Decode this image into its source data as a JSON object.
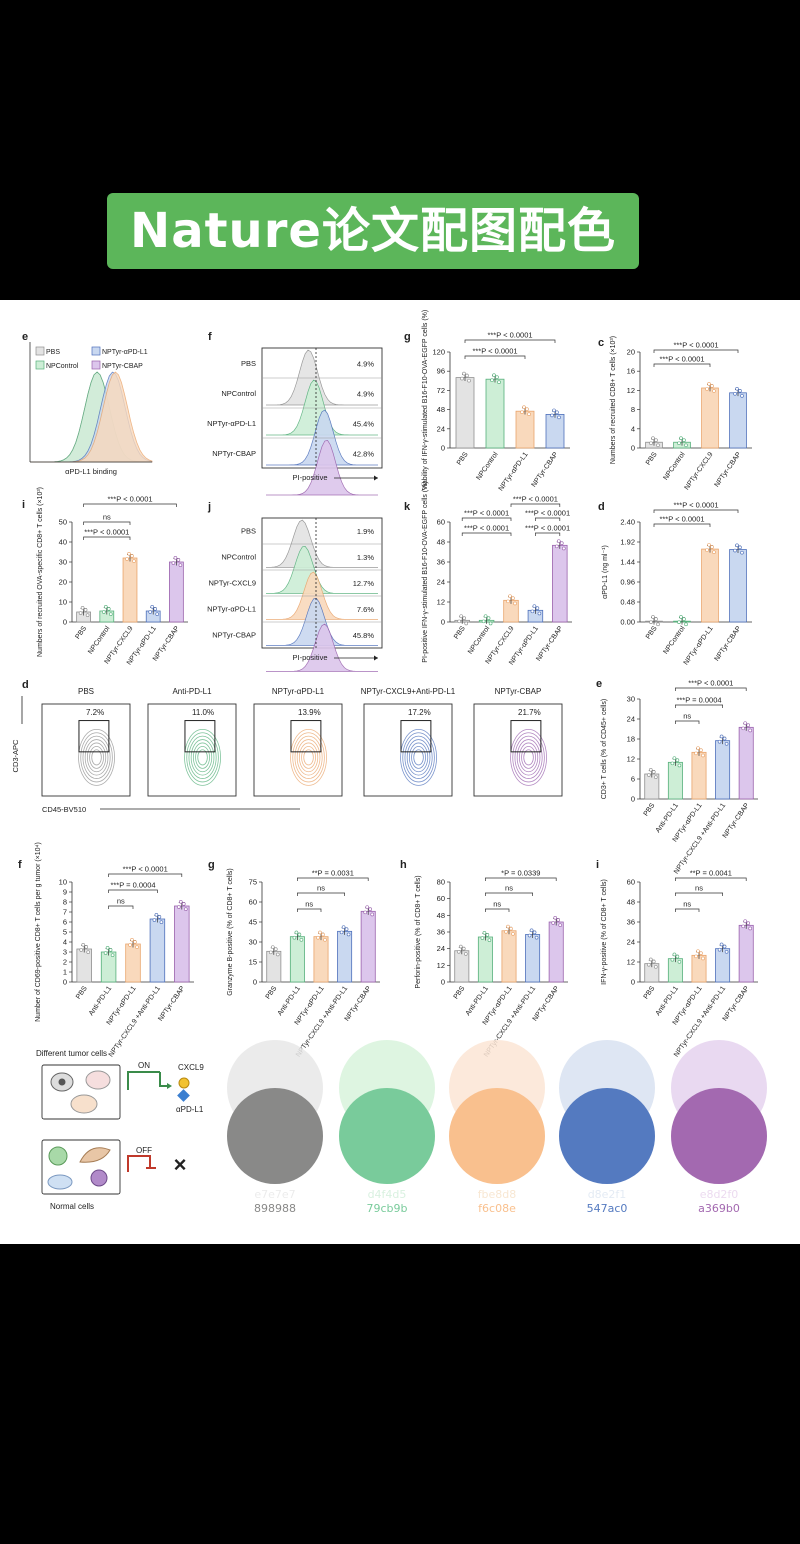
{
  "banner": {
    "title": "Nature论文配图配色"
  },
  "palette": [
    {
      "light": "e7e7e7",
      "dark": "898988",
      "light_color": "#e7e7e7",
      "dark_color": "#898988",
      "ghost_color": "#ececec"
    },
    {
      "light": "d4f4d5",
      "dark": "79cb9b",
      "light_color": "#d8f3dc",
      "dark_color": "#79cb9b",
      "ghost_color": "#d9f1e0"
    },
    {
      "light": "fbe8d8",
      "dark": "f6c08e",
      "light_color": "#fbe5d5",
      "dark_color": "#f9c08e",
      "ghost_color": "#f8e7d2"
    },
    {
      "light": "d8e2f1",
      "dark": "547ac0",
      "light_color": "#d8e2f1",
      "dark_color": "#547ac0",
      "ghost_color": "#e4ebf4"
    },
    {
      "light": "e8d2f0",
      "dark": "a369b0",
      "light_color": "#e5d2ef",
      "dark_color": "#a369b0",
      "ghost_color": "#ecdbf0"
    }
  ],
  "chart_data": [
    {
      "id": "e-hist",
      "type": "area",
      "panel_label": "e",
      "xlabel": "αPD-L1 binding",
      "legend": [
        "PBS",
        "NPControl",
        "NPTyr-αPD-L1",
        "NPTyr-CBAP"
      ]
    },
    {
      "id": "f-flow",
      "type": "area",
      "panel_label": "f",
      "xlabel": "PI-positive",
      "rows": [
        {
          "label": "PBS",
          "value": "4.9%"
        },
        {
          "label": "NPControl",
          "value": "4.9%"
        },
        {
          "label": "NPTyr-αPD-L1",
          "value": "45.4%"
        },
        {
          "label": "NPTyr-CBAP",
          "value": "42.8%"
        }
      ]
    },
    {
      "id": "g-bar",
      "type": "bar",
      "panel_label": "g",
      "ylabel": "Viability of IFN-γ-stimulated B16-F10-OVA-EGFP cells (%)",
      "categories": [
        "PBS",
        "NPControl",
        "NPTyr-αPD-L1",
        "NPTyr-CBAP"
      ],
      "values": [
        88,
        86,
        46,
        42
      ],
      "ylim": [
        0,
        120
      ],
      "yticks": [
        "0",
        "24",
        "48",
        "72",
        "96",
        "120"
      ],
      "annotations": [
        "***P < 0.0001",
        "***P < 0.0001"
      ]
    },
    {
      "id": "c-bar",
      "type": "bar",
      "panel_label": "c",
      "ylabel": "Numbers of recruited CD8+ T cells (×10³)",
      "categories": [
        "PBS",
        "NPControl",
        "NPTyr-CXCL9",
        "NPTyr-CBAP"
      ],
      "values": [
        1.2,
        1.2,
        12.5,
        11.5
      ],
      "ylim": [
        0,
        20
      ],
      "yticks": [
        "0",
        "4",
        "8",
        "12",
        "16",
        "20"
      ],
      "annotations": [
        "***P < 0.0001",
        "***P < 0.0001"
      ]
    },
    {
      "id": "i-bar",
      "type": "bar",
      "panel_label": "i",
      "ylabel": "Numbers of recruited OVA-specific CD8+ T cells (×10³)",
      "categories": [
        "PBS",
        "NPControl",
        "NPTyr-CXCL9",
        "NPTyr-αPD-L1",
        "NPTyr-CBAP"
      ],
      "values": [
        5,
        5.5,
        32,
        5.5,
        30
      ],
      "ylim": [
        0,
        50
      ],
      "yticks": [
        "0",
        "10",
        "20",
        "30",
        "40",
        "50"
      ],
      "annotations": [
        "***P < 0.0001",
        "ns",
        "***P < 0.0001"
      ]
    },
    {
      "id": "j-flow",
      "type": "area",
      "panel_label": "j",
      "xlabel": "PI-positive",
      "rows": [
        {
          "label": "PBS",
          "value": "1.9%"
        },
        {
          "label": "NPControl",
          "value": "1.3%"
        },
        {
          "label": "NPTyr-CXCL9",
          "value": "12.7%"
        },
        {
          "label": "NPTyr-αPD-L1",
          "value": "7.6%"
        },
        {
          "label": "NPTyr-CBAP",
          "value": "45.8%"
        }
      ]
    },
    {
      "id": "k-bar",
      "type": "bar",
      "panel_label": "k",
      "ylabel": "PI-positive IFN-γ-stimulated B16-F10-OVA-EGFP cells (%)",
      "categories": [
        "PBS",
        "NPControl",
        "NPTyr-CXCL9",
        "NPTyr-αPD-L1",
        "NPTyr-CBAP"
      ],
      "values": [
        1,
        1,
        13,
        7,
        46
      ],
      "ylim": [
        0,
        60
      ],
      "yticks": [
        "0",
        "12",
        "24",
        "36",
        "48",
        "60"
      ],
      "annotations": [
        "***P < 0.0001",
        "***P < 0.0001",
        "***P < 0.0001",
        "***P < 0.0001",
        "***P < 0.0001"
      ]
    },
    {
      "id": "d-bar",
      "type": "bar",
      "panel_label": "d",
      "ylabel": "αPD-L1 (ng ml⁻¹)",
      "categories": [
        "PBS",
        "NPControl",
        "NPTyr-αPD-L1",
        "NPTyr-CBAP"
      ],
      "values": [
        0.02,
        0.02,
        1.75,
        1.74
      ],
      "ylim": [
        0,
        2.4
      ],
      "yticks": [
        "0.00",
        "0.48",
        "0.96",
        "1.44",
        "1.92",
        "2.40"
      ],
      "annotations": [
        "***P < 0.0001",
        "***P < 0.0001"
      ]
    },
    {
      "id": "d-flow",
      "type": "scatter",
      "panel_label": "d",
      "xlabel": "CD45-BV510",
      "ylabel": "CD3-APC",
      "plots": [
        {
          "title": "PBS",
          "value": "7.2%"
        },
        {
          "title": "Anti-PD-L1",
          "value": "11.0%"
        },
        {
          "title": "NPTyr-αPD-L1",
          "value": "13.9%"
        },
        {
          "title": "NPTyr-CXCL9+Anti-PD-L1",
          "value": "17.2%"
        },
        {
          "title": "NPTyr-CBAP",
          "value": "21.7%"
        }
      ]
    },
    {
      "id": "e-bar",
      "type": "bar",
      "panel_label": "e",
      "ylabel": "CD3+ T cells (% of CD45+ cells)",
      "categories": [
        "PBS",
        "Anti-PD-L1",
        "NPTyr-αPD-L1",
        "NPTyr-CXCL9 +Anti-PD-L1",
        "NPTyr-CBAP"
      ],
      "values": [
        7.5,
        11,
        14,
        17.5,
        21.5
      ],
      "ylim": [
        0,
        30
      ],
      "yticks": [
        "0",
        "6",
        "12",
        "18",
        "24",
        "30"
      ],
      "annotations": [
        "***P < 0.0001",
        "***P = 0.0004",
        "ns"
      ]
    },
    {
      "id": "f-bar",
      "type": "bar",
      "panel_label": "f",
      "ylabel": "Number of CD69-positive CD8+ T cells per g tumor (×10⁴)",
      "categories": [
        "PBS",
        "Anti-PD-L1",
        "NPTyr-αPD-L1",
        "NPTyr-CXCL9 +Anti-PD-L1",
        "NPTyr-CBAP"
      ],
      "values": [
        3.3,
        3,
        3.8,
        6.3,
        7.6
      ],
      "ylim": [
        0,
        10
      ],
      "yticks": [
        "0",
        "1",
        "2",
        "3",
        "4",
        "5",
        "6",
        "7",
        "8",
        "9",
        "10"
      ],
      "annotations": [
        "***P < 0.0001",
        "***P = 0.0004",
        "ns"
      ]
    },
    {
      "id": "g2-bar",
      "type": "bar",
      "panel_label": "g",
      "ylabel": "Granzyme B-positive (% of CD8+ T cells)",
      "categories": [
        "PBS",
        "Anti-PD-L1",
        "NPTyr-αPD-L1",
        "NPTyr-CXCL9 +Anti-PD-L1",
        "NPTyr-CBAP"
      ],
      "values": [
        23,
        34,
        34,
        38,
        53
      ],
      "ylim": [
        0,
        75
      ],
      "yticks": [
        "0",
        "15",
        "30",
        "45",
        "60",
        "75"
      ],
      "annotations": [
        "**P = 0.0031",
        "ns",
        "ns"
      ]
    },
    {
      "id": "h-bar",
      "type": "bar",
      "panel_label": "h",
      "ylabel": "Perforin-positive (% of CD8+ T cells)",
      "categories": [
        "PBS",
        "Anti-PD-L1",
        "NPTyr-αPD-L1",
        "NPTyr-CXCL9 +Anti-PD-L1",
        "NPTyr-CBAP"
      ],
      "values": [
        25,
        36,
        41,
        38,
        48
      ],
      "ylim": [
        0,
        80
      ],
      "yticks": [
        "0",
        "12",
        "24",
        "36",
        "48",
        "60",
        "80"
      ],
      "annotations": [
        "*P = 0.0339",
        "ns",
        "ns"
      ]
    },
    {
      "id": "i2-bar",
      "type": "bar",
      "panel_label": "i",
      "ylabel": "IFN-γ-positive (% of CD8+ T cells)",
      "categories": [
        "PBS",
        "Anti-PD-L1",
        "NPTyr-αPD-L1",
        "NPTyr-CXCL9 +Anti-PD-L1",
        "NPTyr-CBAP"
      ],
      "values": [
        11,
        14,
        16,
        20,
        34
      ],
      "ylim": [
        0,
        60
      ],
      "yticks": [
        "0",
        "12",
        "24",
        "36",
        "48",
        "60"
      ],
      "annotations": [
        "**P = 0.0041",
        "ns",
        "ns"
      ]
    },
    {
      "id": "diagram",
      "type": "table",
      "labels": {
        "top": "Different tumor cells",
        "on": "ON",
        "cxcl9": "CXCL9",
        "pdl1": "αPD-L1",
        "off": "OFF",
        "bottom": "Normal cells"
      }
    }
  ]
}
